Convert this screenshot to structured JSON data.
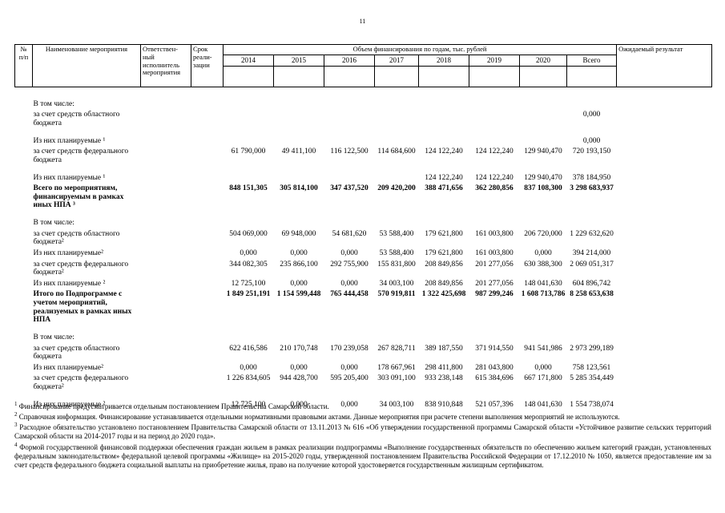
{
  "page": {
    "number": "11"
  },
  "table": {
    "header": {
      "num": "№\nп/п",
      "name": "Наименование мероприятия",
      "executor": "Ответствен-\nный\nисполнитель\nмероприятия",
      "term": "Срок\nреали-\nзации",
      "financing": "Объем финансирования по годам, тыс. рублей",
      "years": [
        "2014",
        "2015",
        "2016",
        "2017",
        "2018",
        "2019",
        "2020",
        "Всего"
      ],
      "result": "Ожидаемый результат"
    },
    "rows": [
      {
        "label": "В том числе:",
        "bold": false,
        "gap": false,
        "values": []
      },
      {
        "label": "за счет средств областного бюджета",
        "bold": false,
        "gap": false,
        "values": [
          "",
          "",
          "",
          "",
          "",
          "",
          "",
          "0,000"
        ]
      },
      {
        "label": "Из них планируемые ¹",
        "bold": false,
        "gap": true,
        "values": [
          "",
          "",
          "",
          "",
          "",
          "",
          "",
          "0,000"
        ]
      },
      {
        "label": "за счет средств федерального бюджета",
        "bold": false,
        "gap": false,
        "values": [
          "61 790,000",
          "49 411,100",
          "116 122,500",
          "114 684,600",
          "124 122,240",
          "124 122,240",
          "129 940,470",
          "720 193,150"
        ]
      },
      {
        "label": "Из них планируемые ¹",
        "bold": false,
        "gap": true,
        "values": [
          "",
          "",
          "",
          "",
          "124 122,240",
          "124 122,240",
          "129 940,470",
          "378 184,950"
        ]
      },
      {
        "label": "Всего по мероприятиям, финансируемым в рамках иных НПА ³",
        "bold": true,
        "gap": false,
        "values": [
          "848 151,305",
          "305 814,100",
          "347 437,520",
          "209 420,200",
          "388 471,656",
          "362 280,856",
          "837 108,300",
          "3 298 683,937"
        ]
      },
      {
        "label": "В том числе:",
        "bold": false,
        "gap": true,
        "values": []
      },
      {
        "label": "за счет средств областного бюджета²",
        "bold": false,
        "gap": false,
        "values": [
          "504 069,000",
          "69 948,000",
          "54 681,620",
          "53 588,400",
          "179 621,800",
          "161 003,800",
          "206 720,000",
          "1 229 632,620"
        ]
      },
      {
        "label": "Из них планируемые²",
        "bold": false,
        "gap": false,
        "values": [
          "0,000",
          "0,000",
          "0,000",
          "53 588,400",
          "179 621,800",
          "161 003,800",
          "0,000",
          "394 214,000"
        ]
      },
      {
        "label": "за счет средств федерального бюджета²",
        "bold": false,
        "gap": false,
        "values": [
          "344 082,305",
          "235 866,100",
          "292 755,900",
          "155 831,800",
          "208 849,856",
          "201 277,056",
          "630 388,300",
          "2 069 051,317"
        ]
      },
      {
        "label": "Из них планируемые ²",
        "bold": false,
        "gap": false,
        "values": [
          "12 725,100",
          "0,000",
          "0,000",
          "34 003,100",
          "208 849,856",
          "201 277,056",
          "148 041,630",
          "604 896,742"
        ]
      },
      {
        "label": "Итого по Подпрограмме с учетом мероприятий, реализуемых в рамках иных НПА",
        "bold": true,
        "gap": false,
        "values": [
          "1 849 251,191",
          "1 154 599,448",
          "765 444,458",
          "570 919,811",
          "1 322 425,698",
          "987 299,246",
          "1 608 713,786",
          "8 258 653,638"
        ]
      },
      {
        "label": "В том числе:",
        "bold": false,
        "gap": true,
        "values": []
      },
      {
        "label": "за счет средств областного бюджета",
        "bold": false,
        "gap": false,
        "values": [
          "622 416,586",
          "210 170,748",
          "170 239,058",
          "267 828,711",
          "389 187,550",
          "371 914,550",
          "941 541,986",
          "2 973 299,189"
        ]
      },
      {
        "label": "Из них планируемые²",
        "bold": false,
        "gap": false,
        "values": [
          "0,000",
          "0,000",
          "0,000",
          "178 667,961",
          "298 411,800",
          "281 043,800",
          "0,000",
          "758 123,561"
        ]
      },
      {
        "label": "за счет средств федерального бюджета²",
        "bold": false,
        "gap": false,
        "values": [
          "1 226 834,605",
          "944 428,700",
          "595 205,400",
          "303 091,100",
          "933 238,148",
          "615 384,696",
          "667 171,800",
          "5 285 354,449"
        ]
      },
      {
        "label": "Из них планируемые ²",
        "bold": false,
        "gap": true,
        "values": [
          "12 725,100",
          "0,000",
          "0,000",
          "34 003,100",
          "838 910,848",
          "521 057,396",
          "148 041,630",
          "1 554 738,074"
        ]
      }
    ]
  },
  "footnotes": [
    {
      "marker": "1",
      "text": "Финансирование предусматривается отдельным постановлением Правительства Самарской области."
    },
    {
      "marker": "2",
      "text": "Справочная информация. Финансирование устанавливается отдельными нормативными правовыми актами. Данные мероприятия при расчете степени выполнения мероприятий не используются."
    },
    {
      "marker": "3",
      "text": "Расходное обязательство установлено постановлением Правительства Самарской области от 13.11.2013 № 616 «Об утверждении государственной программы Самарской области «Устойчивое развитие сельских территорий Самарской области на 2014-2017 годы и на период до 2020 года»."
    },
    {
      "marker": "4",
      "text": "Формой государственной финансовой поддержки обеспечения граждан жильем в рамках реализации подпрограммы «Выполнение государственных обязательств по обеспечению жильем категорий граждан, установленных федеральным законодательством» федеральной целевой программы «Жилище» на 2015-2020 годы, утвержденной постановлением Правительства Российской Федерации от 17.12.2010 № 1050, является предоставление им за счет средств федерального бюджета социальной выплаты на приобретение жилья, право на получение которой удостоверяется государственным жилищным сертификатом."
    }
  ]
}
